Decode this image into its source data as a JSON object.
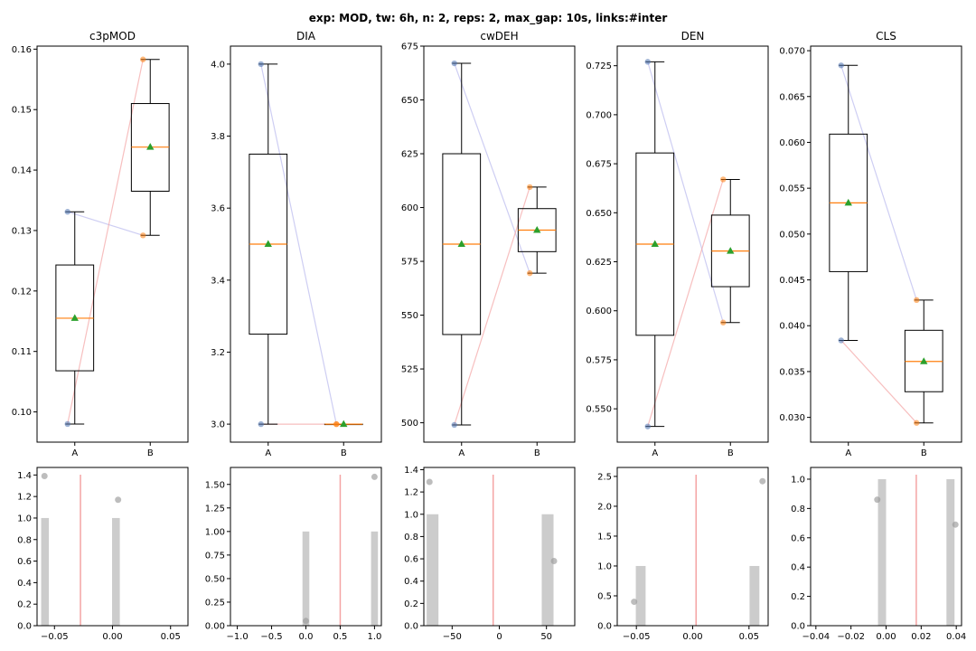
{
  "figure": {
    "title": "exp: MOD, tw: 6h, n: 2, reps: 2, max_gap: 10s, links:#inter"
  },
  "chart_data": [
    {
      "type": "box",
      "title": "c3pMOD",
      "categories": [
        "A",
        "B"
      ],
      "ylim": [
        0.095,
        0.1605
      ],
      "yticks": [
        0.1,
        0.11,
        0.12,
        0.13,
        0.14,
        0.15,
        0.16
      ],
      "ytick_labels": [
        "0.10",
        "0.11",
        "0.12",
        "0.13",
        "0.14",
        "0.15",
        "0.16"
      ],
      "boxes": [
        {
          "whislo": 0.098,
          "q1": 0.1068,
          "med": 0.1155,
          "q3": 0.1243,
          "whishi": 0.1331,
          "mean": 0.1155,
          "points": [
            0.1331,
            0.098
          ]
        },
        {
          "whislo": 0.1292,
          "q1": 0.1365,
          "med": 0.1438,
          "q3": 0.151,
          "whishi": 0.1583,
          "mean": 0.1438,
          "points": [
            0.1583,
            0.1292
          ]
        }
      ],
      "links": [
        [
          0,
          1
        ],
        [
          1,
          0
        ]
      ]
    },
    {
      "type": "box",
      "title": "DIA",
      "categories": [
        "A",
        "B"
      ],
      "ylim": [
        2.95,
        4.05
      ],
      "yticks": [
        3.0,
        3.2,
        3.4,
        3.6,
        3.8,
        4.0
      ],
      "ytick_labels": [
        "3.0",
        "3.2",
        "3.4",
        "3.6",
        "3.8",
        "4.0"
      ],
      "boxes": [
        {
          "whislo": 3.0,
          "q1": 3.25,
          "med": 3.5,
          "q3": 3.75,
          "whishi": 4.0,
          "mean": 3.5,
          "points": [
            4.0,
            3.0
          ]
        },
        {
          "whislo": 3.0,
          "q1": 3.0,
          "med": 3.0,
          "q3": 3.0,
          "whishi": 3.0,
          "mean": 3.0,
          "points": [
            3.0,
            3.0
          ]
        }
      ],
      "links": [
        [
          0,
          1
        ],
        [
          1,
          0
        ]
      ]
    },
    {
      "type": "box",
      "title": "cwDEH",
      "categories": [
        "A",
        "B"
      ],
      "ylim": [
        491,
        675
      ],
      "yticks": [
        500,
        525,
        550,
        575,
        600,
        625,
        650,
        675
      ],
      "ytick_labels": [
        "500",
        "525",
        "550",
        "575",
        "600",
        "625",
        "650",
        "675"
      ],
      "boxes": [
        {
          "whislo": 499,
          "q1": 541,
          "med": 583,
          "q3": 625,
          "whishi": 667,
          "mean": 583,
          "points": [
            667,
            499
          ]
        },
        {
          "whislo": 569.5,
          "q1": 579.5,
          "med": 589.5,
          "q3": 599.5,
          "whishi": 609.5,
          "mean": 589.5,
          "points": [
            609.5,
            569.5
          ]
        }
      ],
      "links": [
        [
          0,
          1
        ],
        [
          1,
          0
        ]
      ]
    },
    {
      "type": "box",
      "title": "DEN",
      "categories": [
        "A",
        "B"
      ],
      "ylim": [
        0.533,
        0.735
      ],
      "yticks": [
        0.55,
        0.575,
        0.6,
        0.625,
        0.65,
        0.675,
        0.7,
        0.725
      ],
      "ytick_labels": [
        "0.550",
        "0.575",
        "0.600",
        "0.625",
        "0.650",
        "0.675",
        "0.700",
        "0.725"
      ],
      "boxes": [
        {
          "whislo": 0.541,
          "q1": 0.5875,
          "med": 0.634,
          "q3": 0.6805,
          "whishi": 0.727,
          "mean": 0.634,
          "points": [
            0.727,
            0.541
          ]
        },
        {
          "whislo": 0.594,
          "q1": 0.6123,
          "med": 0.6305,
          "q3": 0.6488,
          "whishi": 0.667,
          "mean": 0.6305,
          "points": [
            0.667,
            0.594
          ]
        }
      ],
      "links": [
        [
          0,
          1
        ],
        [
          1,
          0
        ]
      ]
    },
    {
      "type": "box",
      "title": "CLS",
      "categories": [
        "A",
        "B"
      ],
      "ylim": [
        0.0273,
        0.0705
      ],
      "yticks": [
        0.03,
        0.035,
        0.04,
        0.045,
        0.05,
        0.055,
        0.06,
        0.065,
        0.07
      ],
      "ytick_labels": [
        "0.030",
        "0.035",
        "0.040",
        "0.045",
        "0.050",
        "0.055",
        "0.060",
        "0.065",
        "0.070"
      ],
      "boxes": [
        {
          "whislo": 0.0384,
          "q1": 0.0459,
          "med": 0.0534,
          "q3": 0.0609,
          "whishi": 0.0684,
          "mean": 0.0534,
          "points": [
            0.0684,
            0.0384
          ]
        },
        {
          "whislo": 0.0294,
          "q1": 0.0328,
          "med": 0.0361,
          "q3": 0.0395,
          "whishi": 0.0428,
          "mean": 0.0361,
          "points": [
            0.0294,
            0.0428
          ]
        }
      ],
      "links": [
        [
          0,
          1
        ],
        [
          1,
          0
        ]
      ]
    },
    {
      "type": "histogram",
      "xlim": [
        -0.065,
        0.065
      ],
      "ylim": [
        0,
        1.47
      ],
      "xticks": [
        -0.05,
        0.0,
        0.05
      ],
      "xtick_labels": [
        "−0.05",
        "0.00",
        "0.05"
      ],
      "yticks": [
        0,
        0.2,
        0.4,
        0.6,
        0.8,
        1.0,
        1.2,
        1.4
      ],
      "ytick_labels": [
        "0.0",
        "0.2",
        "0.4",
        "0.6",
        "0.8",
        "1.0",
        "1.2",
        "1.4"
      ],
      "bars": [
        {
          "x0": -0.0615,
          "x1": -0.0548,
          "h": 1
        },
        {
          "x0": -0.0004,
          "x1": 0.0063,
          "h": 1
        }
      ],
      "vline": -0.0276,
      "points": [
        {
          "x": -0.0586,
          "y": 1.39
        },
        {
          "x": 0.0048,
          "y": 1.17
        }
      ]
    },
    {
      "type": "histogram",
      "xlim": [
        -1.1,
        1.1
      ],
      "ylim": [
        0,
        1.68
      ],
      "xticks": [
        -1.0,
        -0.5,
        0.0,
        0.5,
        1.0
      ],
      "xtick_labels": [
        "−1.0",
        "−0.5",
        "0.0",
        "0.5",
        "1.0"
      ],
      "yticks": [
        0,
        0.25,
        0.5,
        0.75,
        1.0,
        1.25,
        1.5
      ],
      "ytick_labels": [
        "0.00",
        "0.25",
        "0.50",
        "0.75",
        "1.00",
        "1.25",
        "1.50"
      ],
      "bars": [
        {
          "x0": -0.05,
          "x1": 0.05,
          "h": 1
        },
        {
          "x0": 0.95,
          "x1": 1.05,
          "h": 1
        }
      ],
      "vline": 0.5,
      "points": [
        {
          "x": 0.0,
          "y": 0.05
        },
        {
          "x": 1.0,
          "y": 1.58
        }
      ]
    },
    {
      "type": "histogram",
      "xlim": [
        -80,
        80
      ],
      "ylim": [
        0,
        1.42
      ],
      "xticks": [
        -50,
        0,
        50
      ],
      "xtick_labels": [
        "−50",
        "0",
        "50"
      ],
      "yticks": [
        0,
        0.2,
        0.4,
        0.6,
        0.8,
        1.0,
        1.2,
        1.4
      ],
      "ytick_labels": [
        "0.0",
        "0.2",
        "0.4",
        "0.6",
        "0.8",
        "1.0",
        "1.2",
        "1.4"
      ],
      "bars": [
        {
          "x0": -77,
          "x1": -64.5,
          "h": 1
        },
        {
          "x0": 45,
          "x1": 57.5,
          "h": 1
        }
      ],
      "vline": -6.5,
      "points": [
        {
          "x": -74,
          "y": 1.29
        },
        {
          "x": 58,
          "y": 0.58
        }
      ]
    },
    {
      "type": "histogram",
      "xlim": [
        -0.067,
        0.067
      ],
      "ylim": [
        0,
        2.65
      ],
      "xticks": [
        -0.05,
        0.0,
        0.05
      ],
      "xtick_labels": [
        "−0.05",
        "0.00",
        "0.05"
      ],
      "yticks": [
        0,
        0.5,
        1.0,
        1.5,
        2.0,
        2.5
      ],
      "ytick_labels": [
        "0.0",
        "0.5",
        "1.0",
        "1.5",
        "2.0",
        "2.5"
      ],
      "bars": [
        {
          "x0": -0.0505,
          "x1": -0.0418,
          "h": 1
        },
        {
          "x0": 0.0505,
          "x1": 0.0592,
          "h": 1
        }
      ],
      "vline": 0.003,
      "points": [
        {
          "x": -0.052,
          "y": 0.4
        },
        {
          "x": 0.062,
          "y": 2.42
        }
      ]
    },
    {
      "type": "histogram",
      "xlim": [
        -0.043,
        0.043
      ],
      "ylim": [
        0,
        1.08
      ],
      "xticks": [
        -0.04,
        -0.02,
        0.0,
        0.02,
        0.04
      ],
      "xtick_labels": [
        "−0.04",
        "−0.02",
        "0.00",
        "0.02",
        "0.04"
      ],
      "yticks": [
        0,
        0.2,
        0.4,
        0.6,
        0.8,
        1.0
      ],
      "ytick_labels": [
        "0.0",
        "0.2",
        "0.4",
        "0.6",
        "0.8",
        "1.0"
      ],
      "bars": [
        {
          "x0": -0.0046,
          "x1": 0.0,
          "h": 1
        },
        {
          "x0": 0.0344,
          "x1": 0.039,
          "h": 1
        }
      ],
      "vline": 0.0172,
      "points": [
        {
          "x": -0.005,
          "y": 0.86
        },
        {
          "x": 0.0395,
          "y": 0.69
        }
      ]
    }
  ]
}
